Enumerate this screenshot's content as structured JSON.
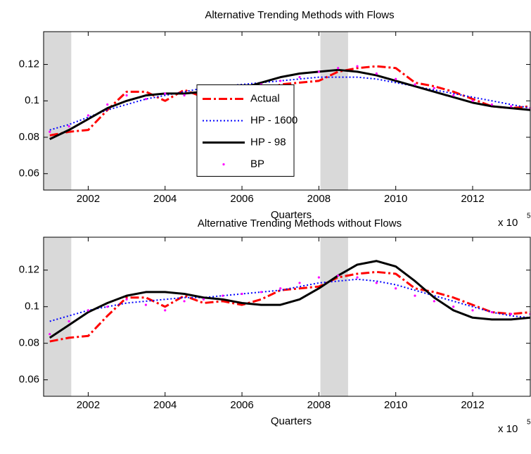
{
  "chart_data": [
    {
      "type": "line",
      "title": "Alternative Trending Methods with Flows",
      "x_label": "Quarters",
      "x_multiplier": "x 10",
      "x_exponent": "5",
      "x": [
        2001.0,
        2001.5,
        2002.0,
        2002.5,
        2003.0,
        2003.5,
        2004.0,
        2004.5,
        2005.0,
        2005.5,
        2006.0,
        2006.5,
        2007.0,
        2007.5,
        2008.0,
        2008.5,
        2009.0,
        2009.5,
        2010.0,
        2010.5,
        2011.0,
        2011.5,
        2012.0,
        2012.5,
        2013.0,
        2013.5
      ],
      "xlim": [
        2000.84,
        2013.5
      ],
      "xticks": [
        2002,
        2004,
        2006,
        2008,
        2010,
        2012
      ],
      "ylim": [
        0.051,
        0.138
      ],
      "yticks": [
        0.06,
        0.08,
        0.1,
        0.12
      ],
      "shaded": [
        [
          2000.84,
          2001.56
        ],
        [
          2008.04,
          2008.76
        ]
      ],
      "shade_color": "#d9d9d9",
      "legend": true,
      "legend_position": "center",
      "series": [
        {
          "name": "Actual",
          "color": "#ff0000",
          "style": "dash-dot",
          "values": [
            0.081,
            0.083,
            0.084,
            0.095,
            0.105,
            0.105,
            0.1,
            0.106,
            0.102,
            0.103,
            0.101,
            0.104,
            0.109,
            0.11,
            0.111,
            0.116,
            0.118,
            0.119,
            0.118,
            0.11,
            0.108,
            0.105,
            0.101,
            0.097,
            0.096,
            0.097
          ]
        },
        {
          "name": "HP - 1600",
          "color": "#0000ff",
          "style": "dotted",
          "values": [
            0.084,
            0.087,
            0.091,
            0.095,
            0.098,
            0.101,
            0.103,
            0.105,
            0.107,
            0.108,
            0.109,
            0.11,
            0.111,
            0.112,
            0.113,
            0.113,
            0.113,
            0.112,
            0.11,
            0.108,
            0.106,
            0.104,
            0.102,
            0.1,
            0.098,
            0.096
          ]
        },
        {
          "name": "HP - 98",
          "color": "#000000",
          "style": "solid",
          "values": [
            0.079,
            0.084,
            0.09,
            0.096,
            0.1,
            0.103,
            0.104,
            0.104,
            0.105,
            0.106,
            0.107,
            0.11,
            0.113,
            0.115,
            0.116,
            0.117,
            0.116,
            0.114,
            0.111,
            0.108,
            0.105,
            0.102,
            0.099,
            0.097,
            0.096,
            0.095
          ]
        },
        {
          "name": "BP",
          "color": "#ff00ff",
          "style": "markers",
          "values": [
            0.083,
            0.086,
            0.092,
            0.098,
            0.103,
            0.101,
            0.104,
            0.103,
            0.105,
            0.106,
            0.108,
            0.109,
            0.111,
            0.113,
            0.116,
            0.118,
            0.119,
            0.115,
            0.112,
            0.109,
            0.107,
            0.103,
            0.1,
            0.098,
            0.097,
            0.096
          ]
        }
      ]
    },
    {
      "type": "line",
      "title": "Alternative Trending Methods without Flows",
      "x_label": "Quarters",
      "x_multiplier": "x 10",
      "x_exponent": "5",
      "x": [
        2001.0,
        2001.5,
        2002.0,
        2002.5,
        2003.0,
        2003.5,
        2004.0,
        2004.5,
        2005.0,
        2005.5,
        2006.0,
        2006.5,
        2007.0,
        2007.5,
        2008.0,
        2008.5,
        2009.0,
        2009.5,
        2010.0,
        2010.5,
        2011.0,
        2011.5,
        2012.0,
        2012.5,
        2013.0,
        2013.5
      ],
      "xlim": [
        2000.84,
        2013.5
      ],
      "xticks": [
        2002,
        2004,
        2006,
        2008,
        2010,
        2012
      ],
      "ylim": [
        0.051,
        0.138
      ],
      "yticks": [
        0.06,
        0.08,
        0.1,
        0.12
      ],
      "shaded": [
        [
          2000.84,
          2001.56
        ],
        [
          2008.04,
          2008.76
        ]
      ],
      "shade_color": "#d9d9d9",
      "legend": false,
      "series": [
        {
          "name": "Actual",
          "color": "#ff0000",
          "style": "dash-dot",
          "values": [
            0.081,
            0.083,
            0.084,
            0.095,
            0.105,
            0.105,
            0.1,
            0.106,
            0.102,
            0.103,
            0.101,
            0.104,
            0.109,
            0.11,
            0.111,
            0.116,
            0.118,
            0.119,
            0.118,
            0.11,
            0.108,
            0.105,
            0.101,
            0.097,
            0.096,
            0.097
          ]
        },
        {
          "name": "HP - 1600",
          "color": "#0000ff",
          "style": "dotted",
          "values": [
            0.092,
            0.095,
            0.098,
            0.1,
            0.102,
            0.103,
            0.104,
            0.105,
            0.105,
            0.106,
            0.107,
            0.108,
            0.109,
            0.111,
            0.113,
            0.114,
            0.115,
            0.114,
            0.112,
            0.109,
            0.106,
            0.103,
            0.1,
            0.097,
            0.095,
            0.094
          ]
        },
        {
          "name": "HP - 98",
          "color": "#000000",
          "style": "solid",
          "values": [
            0.083,
            0.09,
            0.097,
            0.102,
            0.106,
            0.108,
            0.108,
            0.107,
            0.105,
            0.104,
            0.102,
            0.101,
            0.101,
            0.104,
            0.11,
            0.117,
            0.123,
            0.125,
            0.122,
            0.114,
            0.105,
            0.098,
            0.094,
            0.093,
            0.093,
            0.094
          ]
        },
        {
          "name": "BP",
          "color": "#ff00ff",
          "style": "markers",
          "values": [
            0.085,
            0.092,
            0.098,
            0.1,
            0.104,
            0.101,
            0.098,
            0.103,
            0.104,
            0.106,
            0.107,
            0.108,
            0.11,
            0.113,
            0.116,
            0.117,
            0.116,
            0.113,
            0.11,
            0.106,
            0.103,
            0.1,
            0.098,
            0.097,
            0.096,
            0.096
          ]
        }
      ]
    }
  ]
}
